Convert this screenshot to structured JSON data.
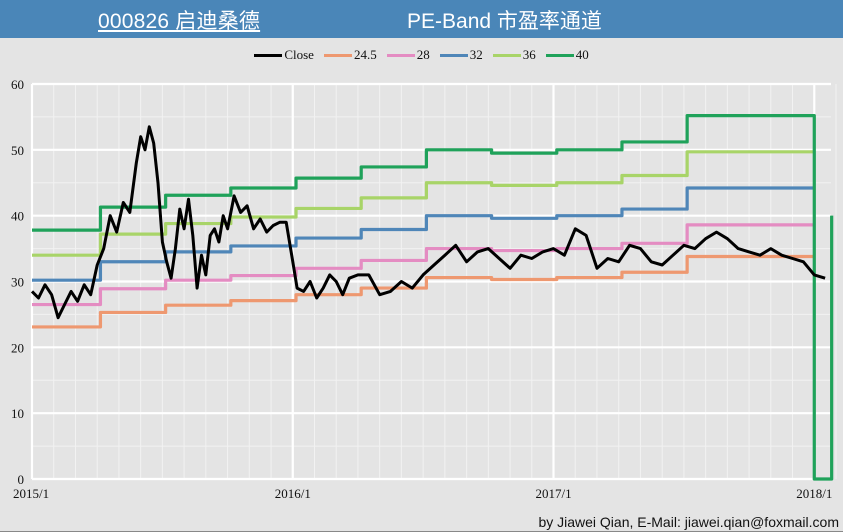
{
  "header": {
    "stock_title": "000826 启迪桑德",
    "chart_title": "PE-Band 市盈率通道",
    "background": "#4a86b8"
  },
  "legend": [
    {
      "label": "Close",
      "color": "#000000"
    },
    {
      "label": "24.5",
      "color": "#ee9870"
    },
    {
      "label": "28",
      "color": "#e48cc2"
    },
    {
      "label": "32",
      "color": "#4f86b8"
    },
    {
      "label": "36",
      "color": "#a8d468"
    },
    {
      "label": "40",
      "color": "#1fa25a"
    }
  ],
  "footer": {
    "credit": "by Jiawei Qian, E-Mail: jiawei.qian@foxmail.com"
  },
  "chart_data": {
    "type": "line",
    "title": "000826 启迪桑德 PE-Band 市盈率通道",
    "xlabel": "",
    "ylabel": "",
    "ylim": [
      0,
      60
    ],
    "yticks": [
      0,
      10,
      20,
      30,
      40,
      50,
      60
    ],
    "xticks": [
      "2015/1",
      "2016/1",
      "2017/1",
      "2018/1"
    ],
    "grid": true,
    "legend_position": "top",
    "band_multiples": [
      24.5,
      28,
      32,
      36,
      40
    ],
    "quarters": [
      "2015Q1",
      "2015Q2",
      "2015Q3",
      "2015Q4",
      "2016Q1",
      "2016Q2",
      "2016Q3",
      "2016Q4",
      "2017Q1",
      "2017Q2",
      "2017Q3",
      "2017Q4"
    ],
    "series": [
      {
        "name": "24.5",
        "color": "#ee9870",
        "values": [
          23.1,
          25.3,
          26.4,
          27.1,
          28.0,
          29.0,
          30.6,
          30.3,
          30.6,
          31.4,
          33.8,
          0
        ]
      },
      {
        "name": "28",
        "color": "#e48cc2",
        "values": [
          26.5,
          28.9,
          30.2,
          30.9,
          32.0,
          33.2,
          35.0,
          34.7,
          35.0,
          35.8,
          38.6,
          0
        ]
      },
      {
        "name": "32",
        "color": "#4f86b8",
        "values": [
          30.2,
          33.0,
          34.5,
          35.4,
          36.6,
          37.9,
          40.0,
          39.6,
          40.0,
          41.0,
          44.2,
          0
        ]
      },
      {
        "name": "36",
        "color": "#a8d468",
        "values": [
          34.0,
          37.2,
          38.8,
          39.8,
          41.1,
          42.7,
          45.0,
          44.6,
          45.0,
          46.1,
          49.7,
          0
        ]
      },
      {
        "name": "40",
        "color": "#1fa25a",
        "values": [
          37.8,
          41.3,
          43.1,
          44.2,
          45.7,
          47.4,
          50.0,
          49.5,
          50.0,
          51.2,
          55.2,
          0
        ]
      }
    ],
    "band_tail_value": 40,
    "close": {
      "name": "Close",
      "color": "#000000",
      "x_month": [
        0,
        0.3,
        0.6,
        0.9,
        1.2,
        1.5,
        1.8,
        2.1,
        2.4,
        2.7,
        3.0,
        3.3,
        3.6,
        3.9,
        4.2,
        4.5,
        4.8,
        5.0,
        5.2,
        5.4,
        5.6,
        5.8,
        6.0,
        6.2,
        6.4,
        6.6,
        6.8,
        7.0,
        7.2,
        7.4,
        7.6,
        7.8,
        8.0,
        8.2,
        8.4,
        8.6,
        8.8,
        9.0,
        9.3,
        9.6,
        9.9,
        10.2,
        10.5,
        10.8,
        11.1,
        11.4,
        11.7,
        12.0,
        12.2,
        12.5,
        12.8,
        13.1,
        13.4,
        13.7,
        14.0,
        14.3,
        14.6,
        15.0,
        15.5,
        16.0,
        16.5,
        17.0,
        17.5,
        18.0,
        18.5,
        19.0,
        19.5,
        20.0,
        20.5,
        21.0,
        21.5,
        22.0,
        22.5,
        23.0,
        23.5,
        24.0,
        24.5,
        25.0,
        25.5,
        26.0,
        26.5,
        27.0,
        27.5,
        28.0,
        28.5,
        29.0,
        29.5,
        30.0,
        30.5,
        31.0,
        31.5,
        32.0,
        32.5,
        33.0,
        33.5,
        34.0,
        34.5,
        35.0,
        35.5,
        36.0,
        36.5
      ],
      "values": [
        28.5,
        27.5,
        29.5,
        28.0,
        24.5,
        26.5,
        28.5,
        27.0,
        29.5,
        28.0,
        32.5,
        35.0,
        40.0,
        37.5,
        42.0,
        40.5,
        48.0,
        52.0,
        50.0,
        53.5,
        51.0,
        45.0,
        36.0,
        33.0,
        30.5,
        35.0,
        41.0,
        38.0,
        42.5,
        37.0,
        29.0,
        34.0,
        31.0,
        37.0,
        38.0,
        36.0,
        40.0,
        38.0,
        43.0,
        40.5,
        41.5,
        38.0,
        39.5,
        37.5,
        38.5,
        39.0,
        39.0,
        33.0,
        29.0,
        28.5,
        30.0,
        27.5,
        29.0,
        31.0,
        30.0,
        28.0,
        30.5,
        31.0,
        31.0,
        28.0,
        28.5,
        30.0,
        29.0,
        31.0,
        32.5,
        34.0,
        35.5,
        33.0,
        34.5,
        35.0,
        33.5,
        32.0,
        34.0,
        33.5,
        34.5,
        35.0,
        34.0,
        38.0,
        37.0,
        32.0,
        33.5,
        33.0,
        35.5,
        35.0,
        33.0,
        32.5,
        34.0,
        35.5,
        35.0,
        36.5,
        37.5,
        36.5,
        35.0,
        34.5,
        34.0,
        35.0,
        34.0,
        33.5,
        33.0,
        31.0,
        30.5
      ]
    }
  }
}
